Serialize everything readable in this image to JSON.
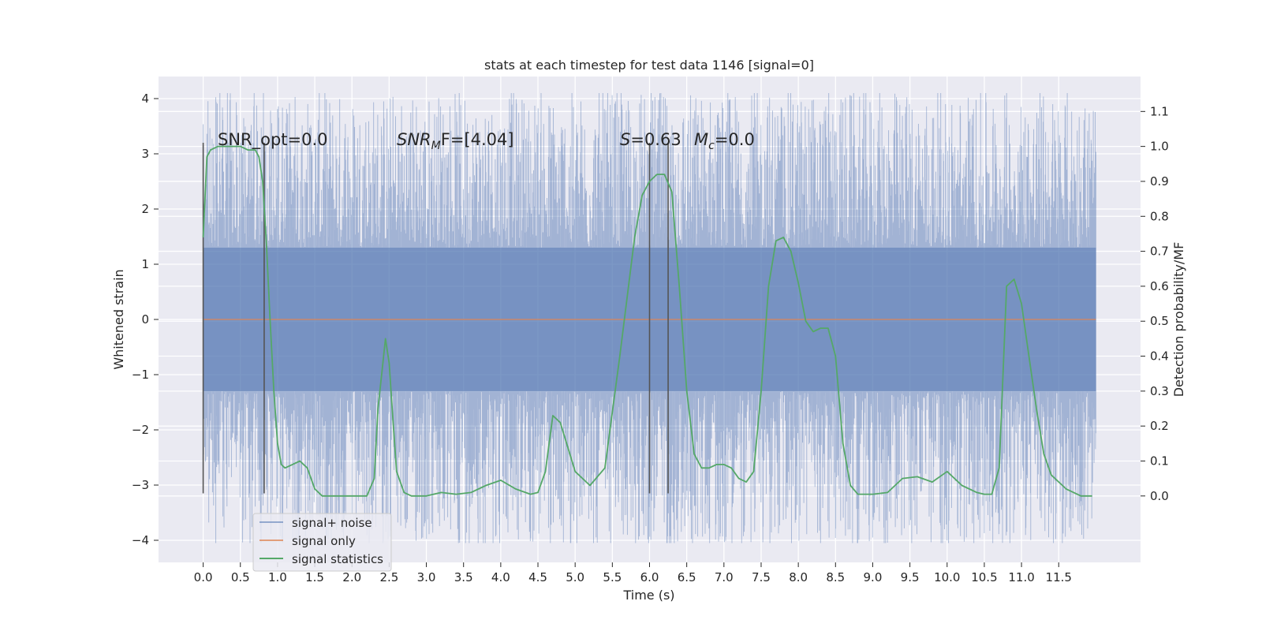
{
  "chart_data": {
    "type": "line",
    "title": "stats at each timestep for test data 1146 [signal=0]",
    "xlabel": "Time (s)",
    "ylabel": "Whitened strain",
    "y2label": "Detection probability/MF",
    "xlim": [
      -0.6,
      12.6
    ],
    "ylim": [
      -4.4,
      4.4
    ],
    "y2lim": [
      -0.19,
      1.2
    ],
    "x_ticks": [
      "0.0",
      "0.5",
      "1.0",
      "1.5",
      "2.0",
      "2.5",
      "3.0",
      "3.5",
      "4.0",
      "4.5",
      "5.0",
      "5.5",
      "6.0",
      "6.5",
      "7.0",
      "7.5",
      "8.0",
      "8.5",
      "9.0",
      "9.5",
      "10.0",
      "10.5",
      "11.0",
      "11.5"
    ],
    "y_ticks": [
      -4,
      -3,
      -2,
      -1,
      0,
      1,
      2,
      3,
      4
    ],
    "y2_ticks": [
      "0.0",
      "0.1",
      "0.2",
      "0.3",
      "0.4",
      "0.5",
      "0.6",
      "0.7",
      "0.8",
      "0.9",
      "1.0",
      "1.1"
    ],
    "grid": true,
    "legend_position": "lower-left",
    "colors": {
      "background": "#eaeaf2",
      "noise": "#4c72b0",
      "signal": "#dd8452",
      "stats": "#55a868",
      "vlines": "#555555"
    },
    "annotations": {
      "snr_opt": "SNR_opt=0.0",
      "snr_mf_base": "SNR",
      "snr_mf_sub": "M",
      "snr_mf_rest": "F=[4.04]",
      "s_italic": "S",
      "s_rest": "=0.63",
      "mc_base": "M",
      "mc_sub": "c",
      "mc_rest": "=0.0"
    },
    "vlines": [
      {
        "x": 0.0,
        "y_range": [
          -3.15,
          3.2
        ]
      },
      {
        "x": 0.82,
        "y_range": [
          -3.15,
          3.2
        ]
      },
      {
        "x": 6.0,
        "y_range": [
          -3.15,
          3.2
        ]
      },
      {
        "x": 6.25,
        "y_range": [
          -3.15,
          3.2
        ]
      }
    ],
    "series": [
      {
        "name": "signal+ noise",
        "style": "dense noise, approx. ±1.3 core band, peaks to ±4",
        "x_range": [
          0.0,
          12.0
        ],
        "envelope": 1.3,
        "peak_max": 4.1,
        "peak_min": -4.05
      },
      {
        "name": "signal only",
        "x": [
          0.0,
          12.0
        ],
        "y": [
          0.0,
          0.0
        ]
      },
      {
        "name": "signal statistics",
        "axis": "right",
        "x": [
          0.0,
          0.05,
          0.1,
          0.2,
          0.3,
          0.4,
          0.5,
          0.6,
          0.7,
          0.75,
          0.8,
          0.85,
          0.9,
          0.95,
          1.0,
          1.05,
          1.1,
          1.2,
          1.3,
          1.4,
          1.5,
          1.6,
          1.8,
          2.0,
          2.2,
          2.3,
          2.35,
          2.4,
          2.45,
          2.5,
          2.55,
          2.6,
          2.7,
          2.8,
          2.9,
          3.0,
          3.2,
          3.4,
          3.6,
          3.8,
          4.0,
          4.2,
          4.4,
          4.5,
          4.6,
          4.7,
          4.8,
          4.9,
          5.0,
          5.2,
          5.4,
          5.6,
          5.8,
          5.9,
          6.0,
          6.1,
          6.2,
          6.3,
          6.4,
          6.5,
          6.6,
          6.7,
          6.8,
          6.9,
          7.0,
          7.1,
          7.2,
          7.3,
          7.4,
          7.5,
          7.6,
          7.7,
          7.8,
          7.9,
          8.0,
          8.1,
          8.2,
          8.3,
          8.4,
          8.5,
          8.6,
          8.7,
          8.8,
          9.0,
          9.2,
          9.4,
          9.6,
          9.8,
          10.0,
          10.2,
          10.4,
          10.5,
          10.6,
          10.7,
          10.8,
          10.9,
          11.0,
          11.1,
          11.2,
          11.3,
          11.4,
          11.6,
          11.8,
          11.95
        ],
        "y": [
          0.74,
          0.97,
          0.99,
          1.0,
          1.0,
          1.0,
          1.0,
          0.99,
          0.99,
          0.97,
          0.9,
          0.72,
          0.5,
          0.3,
          0.15,
          0.09,
          0.08,
          0.09,
          0.1,
          0.08,
          0.02,
          0.0,
          0.0,
          0.0,
          0.0,
          0.05,
          0.25,
          0.35,
          0.45,
          0.38,
          0.22,
          0.07,
          0.01,
          0.0,
          0.0,
          0.0,
          0.01,
          0.005,
          0.01,
          0.03,
          0.045,
          0.02,
          0.005,
          0.01,
          0.07,
          0.23,
          0.21,
          0.14,
          0.07,
          0.03,
          0.08,
          0.4,
          0.74,
          0.86,
          0.9,
          0.92,
          0.92,
          0.87,
          0.6,
          0.3,
          0.12,
          0.08,
          0.08,
          0.09,
          0.09,
          0.08,
          0.05,
          0.04,
          0.07,
          0.3,
          0.6,
          0.73,
          0.74,
          0.7,
          0.61,
          0.5,
          0.47,
          0.48,
          0.48,
          0.4,
          0.15,
          0.03,
          0.005,
          0.005,
          0.01,
          0.05,
          0.055,
          0.04,
          0.07,
          0.03,
          0.01,
          0.005,
          0.005,
          0.08,
          0.6,
          0.62,
          0.55,
          0.4,
          0.25,
          0.12,
          0.06,
          0.02,
          0.0,
          0.0
        ],
        "note": "plotted against the right axis (Detection probability/MF)"
      }
    ]
  }
}
